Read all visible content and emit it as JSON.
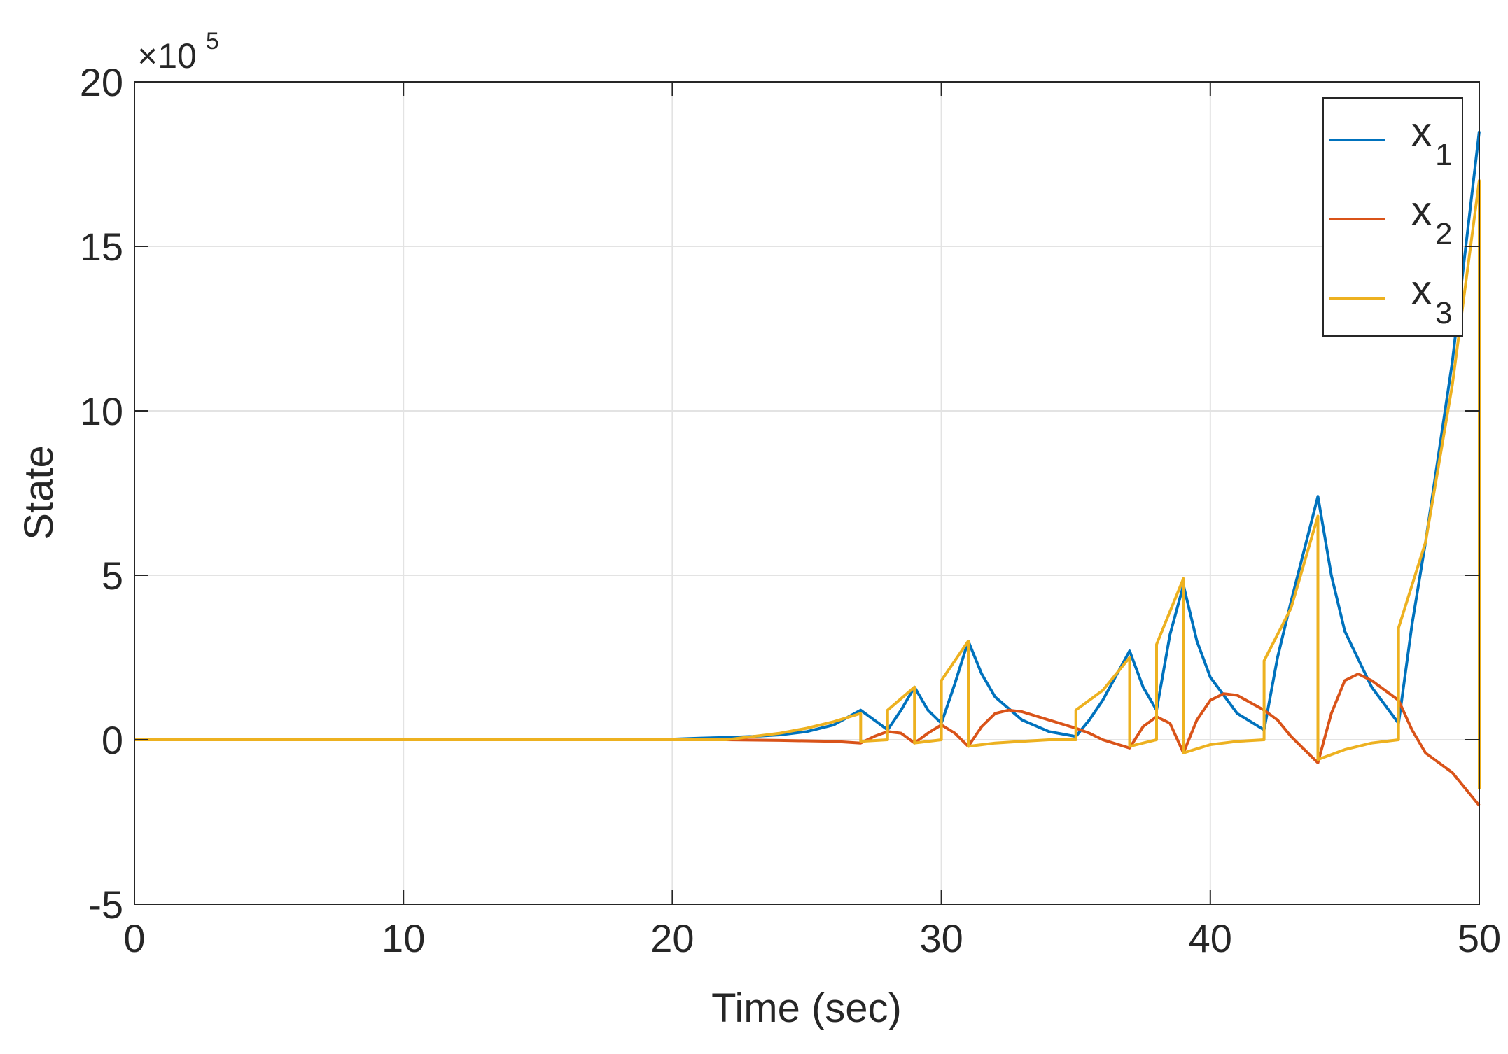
{
  "chart_data": {
    "type": "line",
    "xlabel": "Time (sec)",
    "ylabel": "State",
    "scale_exponent": "5",
    "xlim": [
      0,
      50
    ],
    "ylim": [
      -5,
      20
    ],
    "xticks": [
      0,
      10,
      20,
      30,
      40,
      50
    ],
    "yticks": [
      -5,
      0,
      5,
      10,
      15,
      20
    ],
    "grid": true,
    "legend_position": "top-right",
    "series": [
      {
        "name": "x",
        "subscript": "1",
        "color": "#0072BD",
        "points": [
          [
            0,
            0
          ],
          [
            20,
            0.02
          ],
          [
            21,
            0.05
          ],
          [
            22,
            0.07
          ],
          [
            23,
            0.1
          ],
          [
            24,
            0.15
          ],
          [
            25,
            0.25
          ],
          [
            26,
            0.45
          ],
          [
            27,
            0.9
          ],
          [
            27.5,
            0.6
          ],
          [
            28,
            0.3
          ],
          [
            28.5,
            0.9
          ],
          [
            29,
            1.6
          ],
          [
            29.5,
            0.9
          ],
          [
            30,
            0.5
          ],
          [
            30.5,
            1.7
          ],
          [
            31,
            3.0
          ],
          [
            31.5,
            2.0
          ],
          [
            32,
            1.3
          ],
          [
            33,
            0.6
          ],
          [
            34,
            0.25
          ],
          [
            35,
            0.1
          ],
          [
            35.5,
            0.6
          ],
          [
            36,
            1.2
          ],
          [
            37,
            2.7
          ],
          [
            37.5,
            1.6
          ],
          [
            38,
            0.9
          ],
          [
            38.5,
            3.2
          ],
          [
            39,
            4.7
          ],
          [
            39.5,
            3.0
          ],
          [
            40,
            1.9
          ],
          [
            41,
            0.8
          ],
          [
            42,
            0.3
          ],
          [
            42.5,
            2.5
          ],
          [
            43,
            4.2
          ],
          [
            44,
            7.4
          ],
          [
            44.5,
            5.0
          ],
          [
            45,
            3.3
          ],
          [
            46,
            1.6
          ],
          [
            47,
            0.5
          ],
          [
            47.5,
            3.5
          ],
          [
            48,
            6.0
          ],
          [
            49,
            11.5
          ],
          [
            50,
            18.5
          ]
        ]
      },
      {
        "name": "x",
        "subscript": "2",
        "color": "#D95319",
        "points": [
          [
            0,
            0
          ],
          [
            20,
            0
          ],
          [
            22,
            0
          ],
          [
            24,
            -0.02
          ],
          [
            26,
            -0.05
          ],
          [
            27,
            -0.1
          ],
          [
            27.5,
            0.1
          ],
          [
            28,
            0.25
          ],
          [
            28.5,
            0.2
          ],
          [
            29,
            -0.1
          ],
          [
            29.5,
            0.2
          ],
          [
            30,
            0.45
          ],
          [
            30.5,
            0.2
          ],
          [
            31,
            -0.2
          ],
          [
            31.5,
            0.4
          ],
          [
            32,
            0.8
          ],
          [
            32.5,
            0.9
          ],
          [
            33,
            0.85
          ],
          [
            34,
            0.6
          ],
          [
            35,
            0.35
          ],
          [
            35.5,
            0.2
          ],
          [
            36,
            0
          ],
          [
            37,
            -0.25
          ],
          [
            37.5,
            0.4
          ],
          [
            38,
            0.7
          ],
          [
            38.5,
            0.5
          ],
          [
            39,
            -0.4
          ],
          [
            39.5,
            0.6
          ],
          [
            40,
            1.2
          ],
          [
            40.5,
            1.4
          ],
          [
            41,
            1.35
          ],
          [
            42,
            0.9
          ],
          [
            42.5,
            0.6
          ],
          [
            43,
            0.1
          ],
          [
            44,
            -0.7
          ],
          [
            44.5,
            0.8
          ],
          [
            45,
            1.8
          ],
          [
            45.5,
            2.0
          ],
          [
            46,
            1.8
          ],
          [
            47,
            1.2
          ],
          [
            47.5,
            0.3
          ],
          [
            48,
            -0.4
          ],
          [
            49,
            -1.0
          ],
          [
            50,
            -2.0
          ]
        ]
      },
      {
        "name": "x",
        "subscript": "3",
        "color": "#EDB120",
        "points": [
          [
            0,
            0
          ],
          [
            22,
            0
          ],
          [
            23,
            0.1
          ],
          [
            24,
            0.2
          ],
          [
            25,
            0.35
          ],
          [
            26,
            0.55
          ],
          [
            27,
            0.8
          ],
          [
            27,
            -0.05
          ],
          [
            28,
            0
          ],
          [
            28,
            0.9
          ],
          [
            29,
            1.6
          ],
          [
            29,
            -0.1
          ],
          [
            30,
            0
          ],
          [
            30,
            1.8
          ],
          [
            31,
            3.0
          ],
          [
            31,
            -0.2
          ],
          [
            32,
            -0.1
          ],
          [
            33,
            -0.05
          ],
          [
            34,
            0
          ],
          [
            35,
            0
          ],
          [
            35,
            0.9
          ],
          [
            36,
            1.5
          ],
          [
            37,
            2.5
          ],
          [
            37,
            -0.2
          ],
          [
            38,
            0
          ],
          [
            38,
            2.9
          ],
          [
            39,
            4.9
          ],
          [
            39,
            -0.4
          ],
          [
            40,
            -0.15
          ],
          [
            41,
            -0.05
          ],
          [
            42,
            0
          ],
          [
            42,
            2.4
          ],
          [
            43,
            4.0
          ],
          [
            44,
            6.8
          ],
          [
            44,
            -0.6
          ],
          [
            45,
            -0.3
          ],
          [
            46,
            -0.1
          ],
          [
            47,
            0
          ],
          [
            47,
            3.4
          ],
          [
            48,
            6.0
          ],
          [
            49,
            10.8
          ],
          [
            50,
            17.0
          ],
          [
            50,
            -1.5
          ]
        ]
      }
    ]
  }
}
